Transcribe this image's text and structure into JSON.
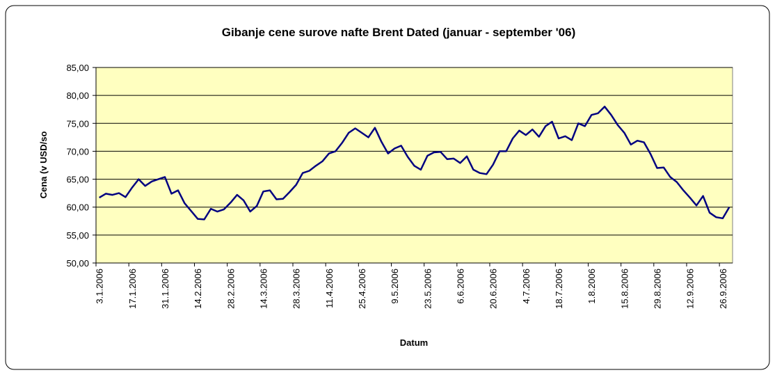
{
  "chart_data": {
    "type": "line",
    "title": "Gibanje cene surove nafte Brent Dated (januar - september '06)",
    "x_label": "Datum",
    "y_label": "Cena (v USD/so",
    "categories": [
      "3.1.2006",
      null,
      null,
      null,
      null,
      "17.1.2006",
      null,
      null,
      null,
      null,
      "31.1.2006",
      null,
      null,
      null,
      null,
      "14.2.2006",
      null,
      null,
      null,
      null,
      "28.2.2006",
      null,
      null,
      null,
      null,
      "14.3.2006",
      null,
      null,
      null,
      null,
      "28.3.2006",
      null,
      null,
      null,
      null,
      "11.4.2006",
      null,
      null,
      null,
      null,
      "25.4.2006",
      null,
      null,
      null,
      null,
      "9.5.2006",
      null,
      null,
      null,
      null,
      "23.5.2006",
      null,
      null,
      null,
      null,
      "6.6.2006",
      null,
      null,
      null,
      null,
      "20.6.2006",
      null,
      null,
      null,
      null,
      "4.7.2006",
      null,
      null,
      null,
      null,
      "18.7.2006",
      null,
      null,
      null,
      null,
      "1.8.2006",
      null,
      null,
      null,
      null,
      "15.8.2006",
      null,
      null,
      null,
      null,
      "29.8.2006",
      null,
      null,
      null,
      null,
      "12.9.2006",
      null,
      null,
      null,
      null,
      "26.9.2006",
      null
    ],
    "series": [
      {
        "name": "Brent Dated",
        "color": "#000080",
        "values": [
          61.7,
          62.4,
          62.2,
          62.5,
          61.8,
          63.5,
          65.0,
          63.8,
          64.6,
          65.0,
          65.4,
          62.4,
          63.0,
          60.7,
          59.3,
          57.9,
          57.8,
          59.7,
          59.2,
          59.6,
          60.8,
          62.2,
          61.2,
          59.2,
          60.2,
          62.8,
          63.0,
          61.4,
          61.5,
          62.7,
          64.0,
          66.1,
          66.5,
          67.4,
          68.2,
          69.6,
          70.0,
          71.5,
          73.3,
          74.1,
          73.3,
          72.5,
          74.2,
          71.7,
          69.6,
          70.5,
          71.0,
          69.0,
          67.4,
          66.7,
          69.2,
          69.8,
          69.9,
          68.6,
          68.7,
          67.9,
          69.1,
          66.7,
          66.1,
          65.9,
          67.6,
          70.0,
          70.0,
          72.3,
          73.7,
          72.9,
          73.9,
          72.6,
          74.5,
          75.3,
          72.3,
          72.7,
          72.0,
          75.0,
          74.5,
          76.5,
          76.8,
          78.0,
          76.5,
          74.7,
          73.3,
          71.2,
          71.9,
          71.6,
          69.5,
          67.0,
          67.1,
          65.4,
          64.5,
          63.0,
          61.7,
          60.3,
          62.0,
          59.0,
          58.2,
          58.0,
          60.0
        ]
      }
    ],
    "ylim": [
      50,
      85
    ],
    "yticks": [
      {
        "value": 50,
        "label": "50,00"
      },
      {
        "value": 55,
        "label": "55,00"
      },
      {
        "value": 60,
        "label": "60,00"
      },
      {
        "value": 65,
        "label": "65,00"
      },
      {
        "value": 70,
        "label": "70,00"
      },
      {
        "value": 75,
        "label": "75,00"
      },
      {
        "value": 80,
        "label": "80,00"
      },
      {
        "value": 85,
        "label": "85,00"
      }
    ],
    "grid": true,
    "plot_background": "#FFFFC0"
  }
}
